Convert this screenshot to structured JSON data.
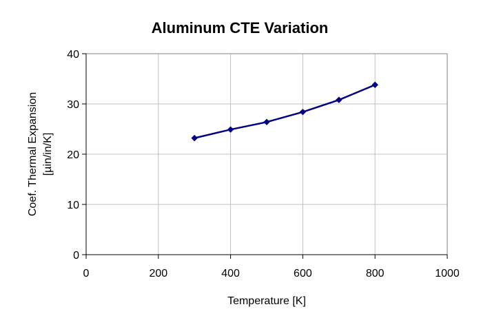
{
  "chart_data": {
    "type": "line",
    "title": "Aluminum CTE Variation",
    "xlabel": "Temperature [K]",
    "ylabel_lines": [
      "Coef. Thermal Expansion",
      "[µin/in/K]"
    ],
    "xlim": [
      0,
      1000
    ],
    "ylim": [
      0,
      40
    ],
    "xticks": [
      0,
      200,
      400,
      600,
      800,
      1000
    ],
    "yticks": [
      0,
      10,
      20,
      30,
      40
    ],
    "grid": true,
    "legend": "none",
    "series": [
      {
        "color": "#000080",
        "marker": "diamond",
        "x": [
          300,
          400,
          500,
          600,
          700,
          800
        ],
        "y": [
          23.2,
          24.9,
          26.4,
          28.4,
          30.8,
          33.8
        ]
      }
    ]
  }
}
